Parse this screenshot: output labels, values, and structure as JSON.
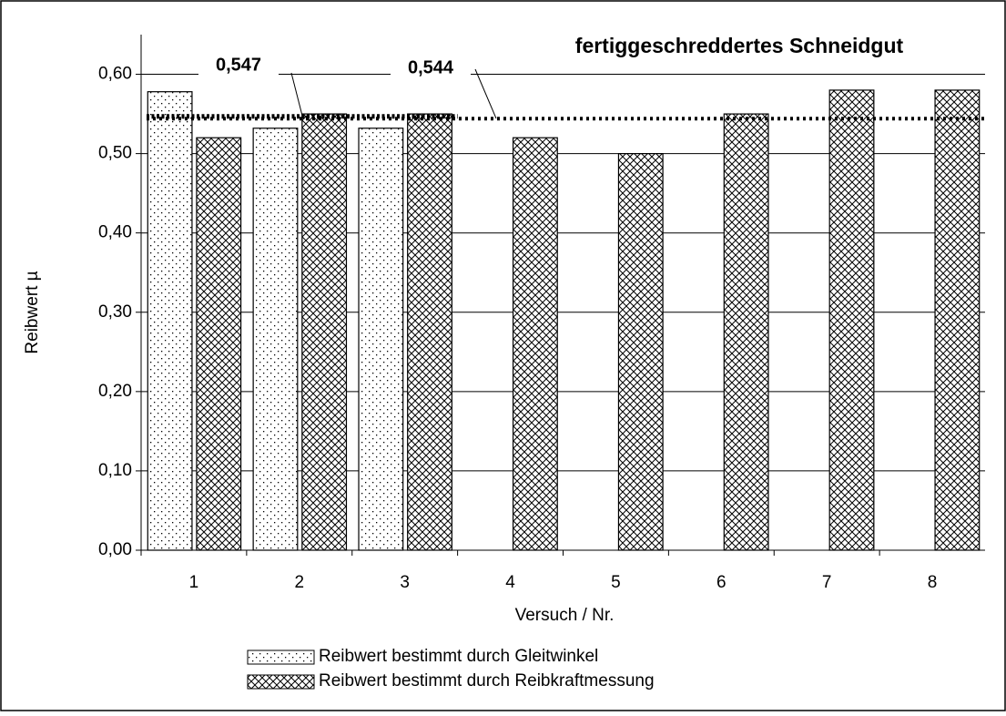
{
  "chart_data": {
    "type": "bar",
    "title": "fertiggeschreddertes Schneidgut",
    "x_label": "Versuch / Nr.",
    "y_label": "Reibwert µ",
    "categories": [
      "1",
      "2",
      "3",
      "4",
      "5",
      "6",
      "7",
      "8"
    ],
    "series": [
      {
        "name": "Reibwert bestimmt durch Gleitwinkel",
        "color": "dots",
        "values": [
          0.578,
          0.532,
          0.532,
          null,
          null,
          null,
          null,
          null
        ]
      },
      {
        "name": "Reibwert bestimmt durch Reibkraftmessung",
        "color": "crosshatch",
        "values": [
          0.52,
          0.55,
          0.55,
          0.52,
          0.5,
          0.55,
          0.58,
          0.58
        ]
      }
    ],
    "reference_lines": [
      {
        "value": 0.547,
        "label": "0,547"
      },
      {
        "value": 0.544,
        "label": "0,544"
      }
    ],
    "ylim": [
      0,
      0.65
    ],
    "yticks": [
      {
        "value": 0,
        "label": "0,00"
      },
      {
        "value": 0.1,
        "label": "0,10"
      },
      {
        "value": 0.2,
        "label": "0,20"
      },
      {
        "value": 0.3,
        "label": "0,30"
      },
      {
        "value": 0.4,
        "label": "0,40"
      },
      {
        "value": 0.5,
        "label": "0,50"
      },
      {
        "value": 0.6,
        "label": "0,60"
      }
    ],
    "grid": true
  }
}
